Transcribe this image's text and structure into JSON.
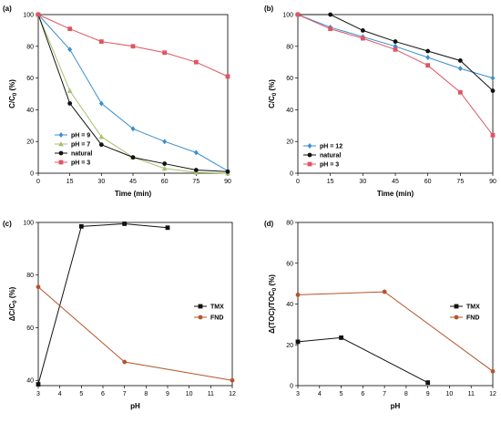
{
  "chart_data": [
    {
      "panel_label": "(a)",
      "type": "line",
      "xlabel": "Time (min)",
      "ylabel": "C/C",
      "ylabel_sub": "0",
      "ylabel_unit": " (%)",
      "xlim": [
        0,
        90
      ],
      "ylim": [
        0,
        100
      ],
      "xticks": [
        0,
        15,
        30,
        45,
        60,
        75,
        90
      ],
      "yticks": [
        0,
        20,
        40,
        60,
        80,
        100
      ],
      "legend_position": "bottom-left",
      "legend_order": [
        0,
        1,
        2,
        3
      ],
      "series": [
        {
          "name": "pH = 9",
          "color": "#3a8fd0",
          "marker": "diamond",
          "x": [
            0,
            15,
            30,
            45,
            60,
            75,
            90
          ],
          "y": [
            100,
            78,
            44,
            28,
            20,
            13,
            1.5
          ]
        },
        {
          "name": "pH = 7",
          "color": "#a8c070",
          "marker": "triangle",
          "x": [
            0,
            15,
            30,
            45,
            60,
            75,
            90
          ],
          "y": [
            100,
            52,
            23,
            10,
            3,
            0.5,
            0
          ]
        },
        {
          "name": "natural",
          "color": "#111111",
          "marker": "circle",
          "x": [
            0,
            15,
            30,
            45,
            60,
            75,
            90
          ],
          "y": [
            100,
            44,
            18,
            10,
            6,
            2,
            1
          ]
        },
        {
          "name": "pH = 3",
          "color": "#e05560",
          "marker": "square",
          "x": [
            0,
            15,
            30,
            45,
            60,
            75,
            90
          ],
          "y": [
            100,
            91,
            83,
            80,
            76,
            70,
            61
          ]
        }
      ]
    },
    {
      "panel_label": "(b)",
      "type": "line",
      "xlabel": "Time (min)",
      "ylabel": "C/C",
      "ylabel_sub": "0",
      "ylabel_unit": " (%)",
      "xlim": [
        0,
        90
      ],
      "ylim": [
        0,
        100
      ],
      "xticks": [
        0,
        15,
        30,
        45,
        60,
        75,
        90
      ],
      "yticks": [
        0,
        20,
        40,
        60,
        80,
        100
      ],
      "legend_position": "bottom-left",
      "legend_order": [
        0,
        1,
        2
      ],
      "series": [
        {
          "name": "pH = 12",
          "color": "#3a8fd0",
          "marker": "diamond",
          "x": [
            0,
            15,
            30,
            45,
            60,
            75,
            90
          ],
          "y": [
            100,
            92,
            86,
            80,
            73,
            66,
            60
          ]
        },
        {
          "name": "natural",
          "color": "#111111",
          "marker": "circle",
          "x": [
            0,
            15,
            30,
            45,
            60,
            75,
            90
          ],
          "y": [
            100,
            100,
            90,
            83,
            77,
            71,
            52
          ]
        },
        {
          "name": "pH = 3",
          "color": "#e05560",
          "marker": "square",
          "x": [
            0,
            15,
            30,
            45,
            60,
            75,
            90
          ],
          "y": [
            100,
            91,
            85,
            78,
            68,
            51,
            24
          ]
        }
      ]
    },
    {
      "panel_label": "(c)",
      "type": "line",
      "xlabel": "pH",
      "ylabel": "ΔC/C",
      "ylabel_sub": "0",
      "ylabel_unit": " (%)",
      "xlim": [
        3,
        12
      ],
      "ylim": [
        38,
        100
      ],
      "xticks": [
        3,
        4,
        5,
        6,
        7,
        8,
        9,
        10,
        11,
        12
      ],
      "yticks": [
        40,
        60,
        80,
        100
      ],
      "legend_position": "right",
      "legend_order": [
        0,
        1
      ],
      "series": [
        {
          "name": "TMX",
          "color": "#111111",
          "marker": "square",
          "x": [
            3,
            5,
            7,
            9
          ],
          "y": [
            38.5,
            98.5,
            99.5,
            98
          ]
        },
        {
          "name": "FND",
          "color": "#b5532a",
          "marker": "circle",
          "x": [
            3,
            7,
            12
          ],
          "y": [
            75.5,
            47,
            40
          ]
        }
      ]
    },
    {
      "panel_label": "(d)",
      "type": "line",
      "xlabel": "pH",
      "ylabel": "Δ(TOC)/TOC",
      "ylabel_sub": "0",
      "ylabel_unit": " (%)",
      "xlim": [
        3,
        12
      ],
      "ylim": [
        0,
        80
      ],
      "xticks": [
        3,
        4,
        5,
        6,
        7,
        8,
        9,
        10,
        11,
        12
      ],
      "yticks": [
        0,
        20,
        40,
        60,
        80
      ],
      "legend_position": "right",
      "legend_order": [
        0,
        1
      ],
      "series": [
        {
          "name": "TMX",
          "color": "#111111",
          "marker": "square",
          "x": [
            3,
            5,
            9
          ],
          "y": [
            21.5,
            23.5,
            1.5
          ]
        },
        {
          "name": "FND",
          "color": "#b5532a",
          "marker": "circle",
          "x": [
            3,
            7,
            12
          ],
          "y": [
            44.5,
            46,
            7
          ]
        }
      ]
    }
  ]
}
